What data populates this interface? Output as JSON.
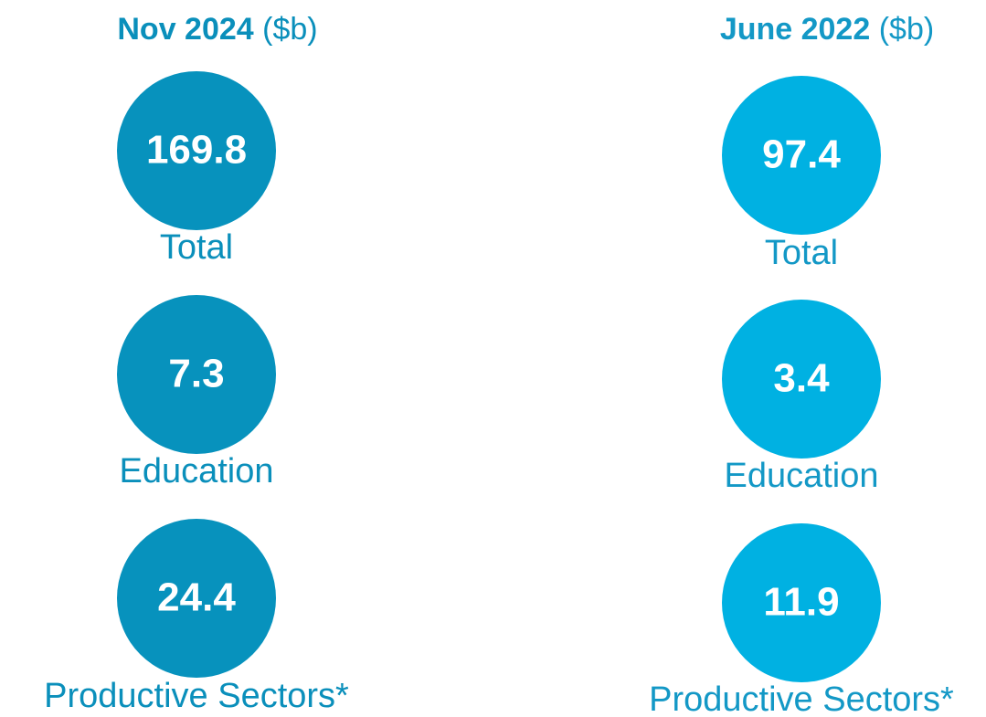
{
  "columns": [
    {
      "title": "Nov 2024",
      "unit": "($b)",
      "color": "#0792bd",
      "text_color": "#0a8fbb",
      "items": [
        {
          "value": 169.8,
          "label": "Total"
        },
        {
          "value": 7.3,
          "label": "Education"
        },
        {
          "value": 24.4,
          "label": "Productive Sectors*"
        }
      ]
    },
    {
      "title": "June 2022",
      "unit": "($b)",
      "color": "#00b1e2",
      "text_color": "#1398c6",
      "items": [
        {
          "value": 97.4,
          "label": "Total"
        },
        {
          "value": 3.4,
          "label": "Education"
        },
        {
          "value": 11.9,
          "label": "Productive Sectors*"
        }
      ]
    }
  ]
}
